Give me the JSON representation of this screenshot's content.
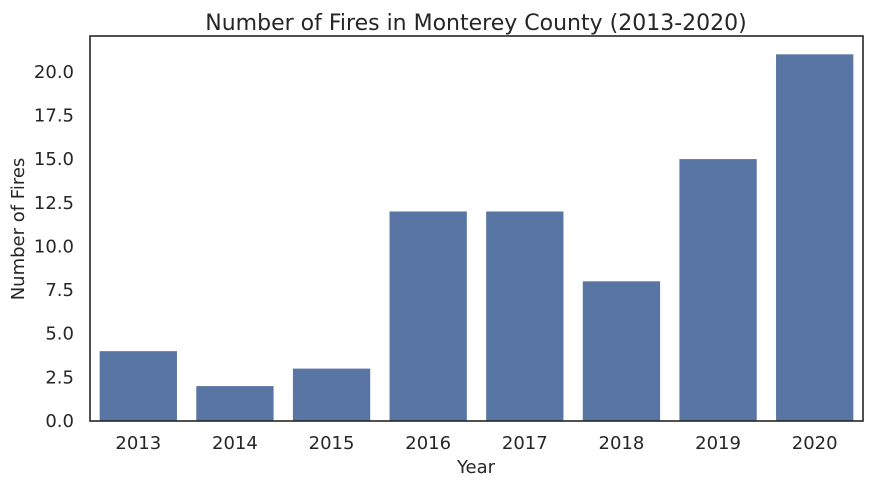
{
  "chart_data": {
    "type": "bar",
    "title": "Number of Fires in Monterey County (2013-2020)",
    "xlabel": "Year",
    "ylabel": "Number of Fires",
    "categories": [
      "2013",
      "2014",
      "2015",
      "2016",
      "2017",
      "2018",
      "2019",
      "2020"
    ],
    "values": [
      4,
      2,
      3,
      12,
      12,
      8,
      15,
      21
    ],
    "ylim": [
      0,
      22.05
    ],
    "yticks": [
      "0.0",
      "2.5",
      "5.0",
      "7.5",
      "10.0",
      "12.5",
      "15.0",
      "17.5",
      "20.0"
    ],
    "grid": false,
    "legend": "none",
    "bar_color": "#5975a4"
  }
}
